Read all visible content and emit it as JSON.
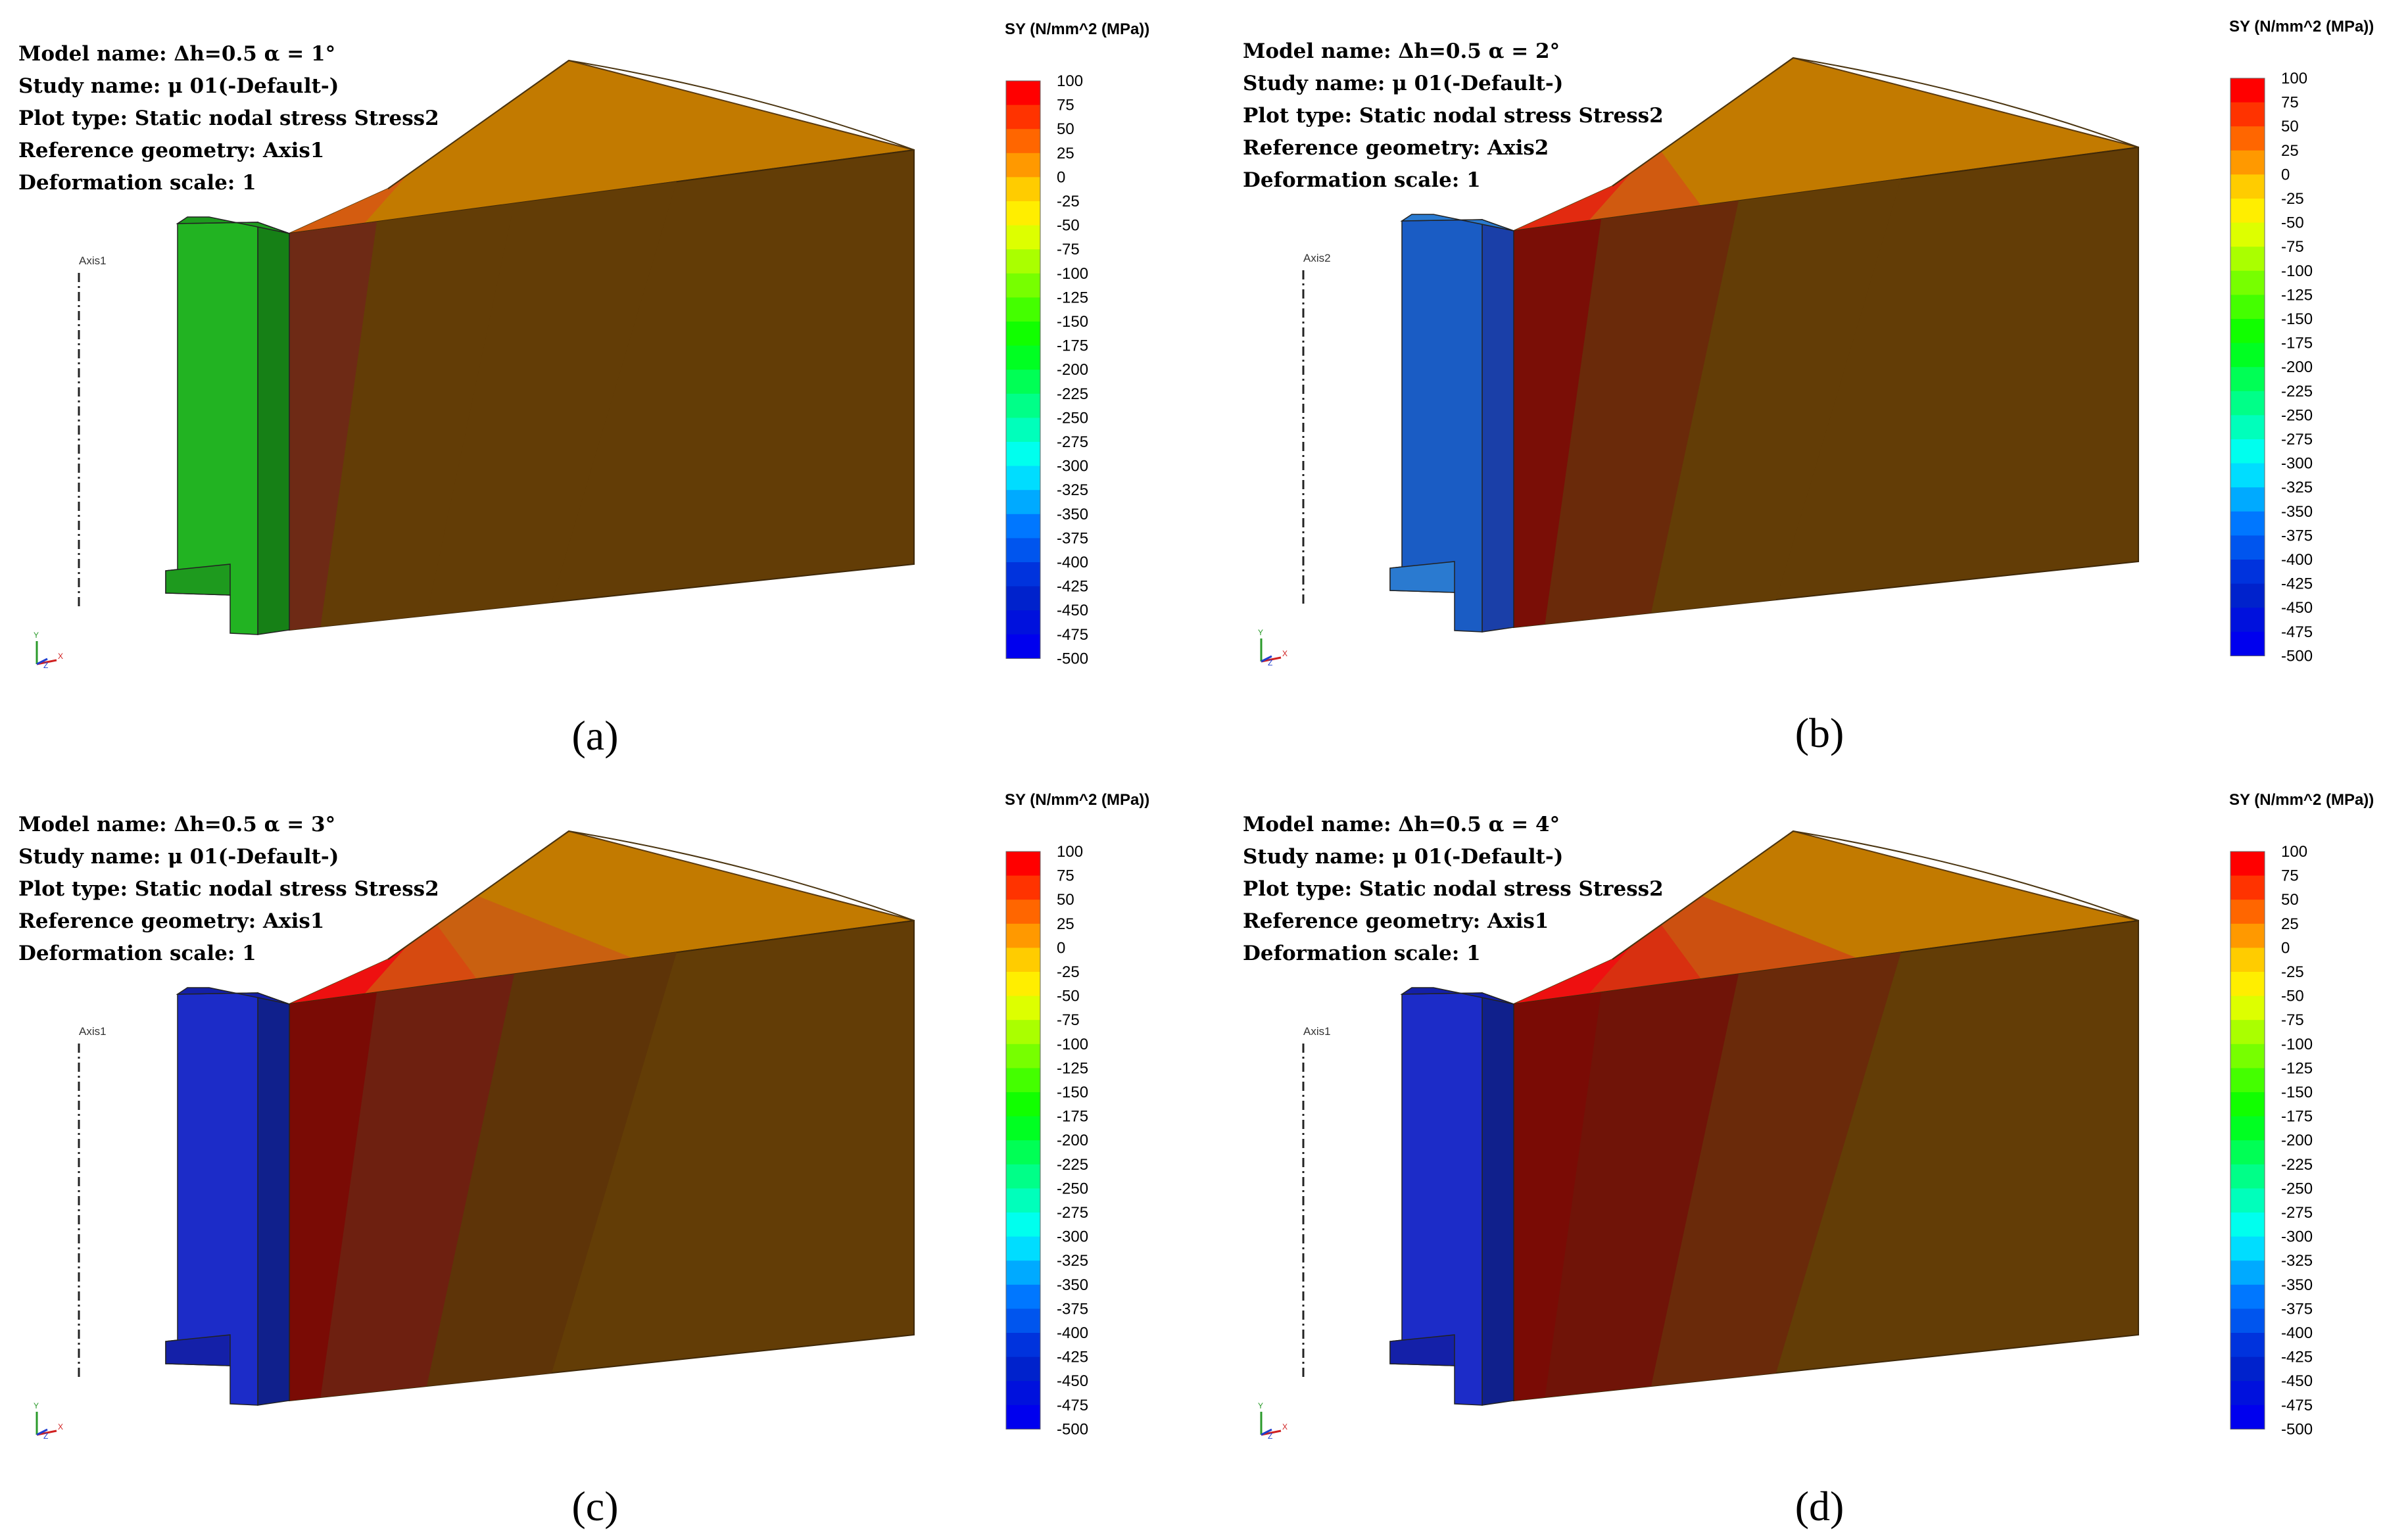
{
  "legend": {
    "title": "SY (N/mm^2 (MPa))",
    "ticks": [
      "100",
      "75",
      "50",
      "25",
      "0",
      "-25",
      "-50",
      "-75",
      "-100",
      "-125",
      "-150",
      "-175",
      "-200",
      "-225",
      "-250",
      "-275",
      "-300",
      "-325",
      "-350",
      "-375",
      "-400",
      "-425",
      "-450",
      "-475",
      "-500"
    ],
    "colors": [
      "#ff0000",
      "#ff3300",
      "#ff6600",
      "#ff9900",
      "#ffcc00",
      "#ffee00",
      "#ddff00",
      "#aaff00",
      "#77ff00",
      "#44ff00",
      "#11ff00",
      "#00ff22",
      "#00ff55",
      "#00ff88",
      "#00ffbb",
      "#00ffee",
      "#00ddff",
      "#00aaff",
      "#0077ff",
      "#0055ee",
      "#0033dd",
      "#0022cc",
      "#0011dd",
      "#0000ee"
    ]
  },
  "panels": [
    {
      "caption": "(a)",
      "info": [
        "Model name: Δh=0.5 α = 1°",
        "Study name: μ 01(-Default-)",
        "Plot type: Static nodal stress Stress2",
        "Reference geometry: Axis1",
        "Deformation scale: 1"
      ],
      "axis_label": "Axis1",
      "ring_colors": [
        "#22b322",
        "#1e9a1e",
        "#168016"
      ],
      "band_colors": [
        "#6e2a15",
        "#633d06",
        "#633d06",
        "#633d06"
      ],
      "top_colors": [
        "#d45c10",
        "#c27a00",
        "#c27a00",
        "#c27a00"
      ]
    },
    {
      "caption": "(b)",
      "info": [
        "Model name: Δh=0.5 α = 2°",
        "Study name: μ 01(-Default-)",
        "Plot type: Static nodal stress Stress2",
        "Reference geometry: Axis2",
        "Deformation scale: 1"
      ],
      "axis_label": "Axis2",
      "ring_colors": [
        "#1a5cc4",
        "#2a7ad0",
        "#1a3fa8"
      ],
      "band_colors": [
        "#7a0e06",
        "#6a2a0a",
        "#633d06",
        "#633d06"
      ],
      "top_colors": [
        "#e22a10",
        "#d05a10",
        "#c27a00",
        "#c27a00"
      ]
    },
    {
      "caption": "(c)",
      "info": [
        "Model name: Δh=0.5 α = 3°",
        "Study name: μ 01(-Default-)",
        "Plot type: Static nodal stress Stress2",
        "Reference geometry: Axis1",
        "Deformation scale: 1"
      ],
      "axis_label": "Axis1",
      "ring_colors": [
        "#1c2cc8",
        "#1420a8",
        "#10208c"
      ],
      "band_colors": [
        "#7a0b05",
        "#6e2010",
        "#5e3408",
        "#633d06"
      ],
      "top_colors": [
        "#ee1010",
        "#d64a10",
        "#c96010",
        "#c27a00"
      ]
    },
    {
      "caption": "(d)",
      "info": [
        "Model name: Δh=0.5 α = 4°",
        "Study name: μ 01(-Default-)",
        "Plot type: Static nodal stress Stress2",
        "Reference geometry: Axis1",
        "Deformation scale: 1"
      ],
      "axis_label": "Axis1",
      "ring_colors": [
        "#1c2cc8",
        "#1420a8",
        "#10208c"
      ],
      "band_colors": [
        "#7a0b05",
        "#701408",
        "#6a2a0a",
        "#633d06"
      ],
      "top_colors": [
        "#ee1010",
        "#d83010",
        "#cc5010",
        "#c27a00"
      ]
    }
  ],
  "triad": {
    "y": "Y",
    "x": "X",
    "z": "Z"
  }
}
